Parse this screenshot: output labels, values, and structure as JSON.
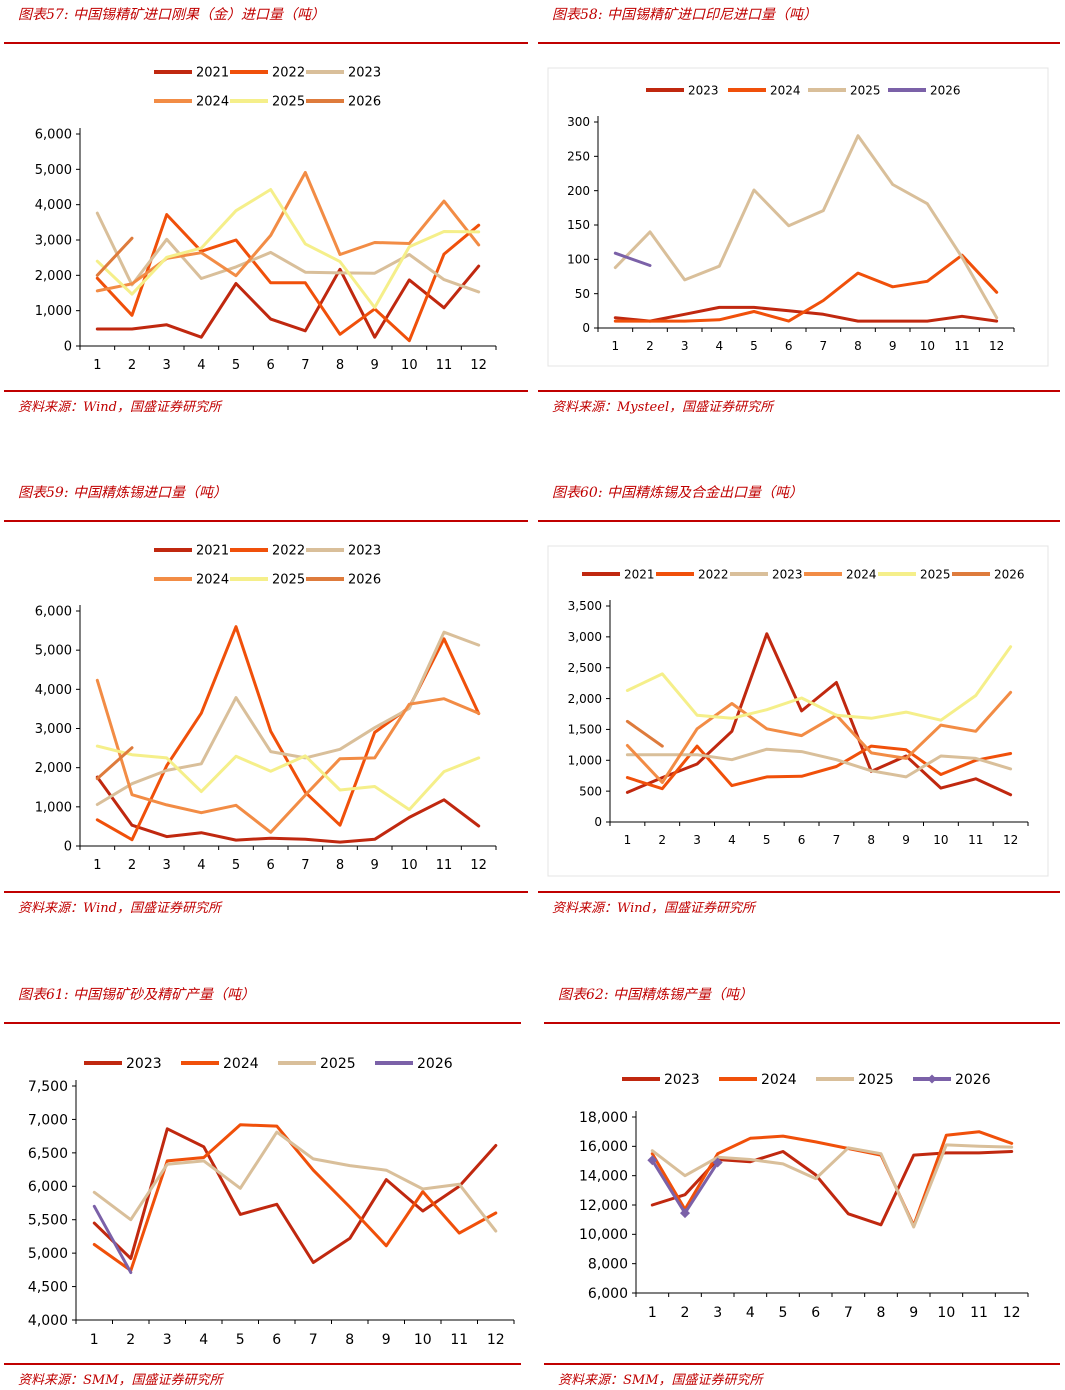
{
  "chart_data": [
    {
      "type": "line",
      "title": "图表57:  中国锡精矿进口刚果（金）进口量（吨）",
      "source": "资料来源：Wind，国盛证券研究所",
      "categories": [
        "1",
        "2",
        "3",
        "4",
        "5",
        "6",
        "7",
        "8",
        "9",
        "10",
        "11",
        "12"
      ],
      "ylim": [
        0,
        6000
      ],
      "yticks": [
        "0",
        "1,000",
        "2,000",
        "3,000",
        "4,000",
        "5,000",
        "6,000"
      ],
      "ytick_values": [
        0,
        1000,
        2000,
        3000,
        4000,
        5000,
        6000
      ],
      "legend_rows": [
        [
          "2021",
          "2022",
          "2023"
        ],
        [
          "2024",
          "2025",
          "2026"
        ]
      ],
      "series": [
        {
          "name": "2021",
          "color": "#c0280f",
          "values": [
            480,
            480,
            600,
            250,
            1770,
            760,
            430,
            2170,
            250,
            1870,
            1080,
            2260
          ]
        },
        {
          "name": "2022",
          "color": "#f0500a",
          "values": [
            1920,
            870,
            3720,
            2680,
            3000,
            1790,
            1790,
            330,
            1050,
            150,
            2600,
            3420
          ]
        },
        {
          "name": "2023",
          "color": "#d9bf9a",
          "values": [
            3760,
            1730,
            3020,
            1910,
            2240,
            2650,
            2090,
            2070,
            2060,
            2590,
            1880,
            1530
          ]
        },
        {
          "name": "2024",
          "color": "#f28c45",
          "values": [
            1560,
            1760,
            2480,
            2640,
            1990,
            3130,
            4910,
            2590,
            2930,
            2900,
            4100,
            2860
          ]
        },
        {
          "name": "2025",
          "color": "#f5ef8a",
          "values": [
            2400,
            1470,
            2510,
            2770,
            3830,
            4430,
            2890,
            2390,
            1090,
            2810,
            3240,
            3230
          ]
        },
        {
          "name": "2026",
          "color": "#de7b3c",
          "values": [
            2000,
            3050,
            null,
            null,
            null,
            null,
            null,
            null,
            null,
            null,
            null,
            null
          ]
        }
      ]
    },
    {
      "type": "line",
      "title": "图表58:  中国锡精矿进口印尼进口量（吨）",
      "source": "资料来源：Mysteel，国盛证券研究所",
      "categories": [
        "1",
        "2",
        "3",
        "4",
        "5",
        "6",
        "7",
        "8",
        "9",
        "10",
        "11",
        "12"
      ],
      "ylim": [
        0,
        300
      ],
      "yticks": [
        "0",
        "50",
        "100",
        "150",
        "200",
        "250",
        "300"
      ],
      "ytick_values": [
        0,
        50,
        100,
        150,
        200,
        250,
        300
      ],
      "legend_rows": [
        [
          "2023",
          "2024",
          "2025",
          "2026"
        ]
      ],
      "series": [
        {
          "name": "2023",
          "color": "#c0280f",
          "values": [
            15,
            10,
            20,
            30,
            30,
            25,
            20,
            10,
            10,
            10,
            17,
            10
          ]
        },
        {
          "name": "2024",
          "color": "#f0500a",
          "values": [
            10,
            10,
            10,
            12,
            24,
            10,
            40,
            80,
            60,
            68,
            106,
            52
          ]
        },
        {
          "name": "2025",
          "color": "#d9bf9a",
          "values": [
            88,
            140,
            70,
            90,
            201,
            149,
            171,
            280,
            209,
            181,
            103,
            15
          ]
        },
        {
          "name": "2026",
          "color": "#7b61a8",
          "values": [
            109,
            91,
            null,
            null,
            null,
            null,
            null,
            null,
            null,
            null,
            null,
            null
          ]
        }
      ]
    },
    {
      "type": "line",
      "title": "图表59:  中国精炼锡进口量（吨）",
      "source": "资料来源：Wind，国盛证券研究所",
      "categories": [
        "1",
        "2",
        "3",
        "4",
        "5",
        "6",
        "7",
        "8",
        "9",
        "10",
        "11",
        "12"
      ],
      "ylim": [
        0,
        6000
      ],
      "yticks": [
        "0",
        "1,000",
        "2,000",
        "3,000",
        "4,000",
        "5,000",
        "6,000"
      ],
      "ytick_values": [
        0,
        1000,
        2000,
        3000,
        4000,
        5000,
        6000
      ],
      "legend_rows": [
        [
          "2021",
          "2022",
          "2023"
        ],
        [
          "2024",
          "2025",
          "2026"
        ]
      ],
      "series": [
        {
          "name": "2021",
          "color": "#c0280f",
          "values": [
            1760,
            530,
            240,
            340,
            150,
            200,
            170,
            100,
            170,
            730,
            1180,
            510
          ]
        },
        {
          "name": "2022",
          "color": "#f0500a",
          "values": [
            670,
            160,
            2050,
            3390,
            5600,
            2930,
            1370,
            530,
            2900,
            3540,
            5290,
            3380
          ]
        },
        {
          "name": "2023",
          "color": "#d9bf9a",
          "values": [
            1060,
            1590,
            1930,
            2100,
            3790,
            2410,
            2250,
            2470,
            3020,
            3510,
            5460,
            5130
          ]
        },
        {
          "name": "2024",
          "color": "#f28c45",
          "values": [
            4230,
            1310,
            1050,
            850,
            1040,
            350,
            1300,
            2230,
            2250,
            3620,
            3760,
            3390
          ]
        },
        {
          "name": "2025",
          "color": "#f5ef8a",
          "values": [
            2550,
            2330,
            2250,
            1390,
            2290,
            1910,
            2300,
            1430,
            1520,
            930,
            1900,
            2250
          ]
        },
        {
          "name": "2026",
          "color": "#de7b3c",
          "values": [
            1720,
            2510,
            null,
            null,
            null,
            null,
            null,
            null,
            null,
            null,
            null,
            null
          ]
        }
      ]
    },
    {
      "type": "line",
      "title": "图表60:  中国精炼锡及合金出口量（吨）",
      "source": "资料来源：Wind，国盛证券研究所",
      "categories": [
        "1",
        "2",
        "3",
        "4",
        "5",
        "6",
        "7",
        "8",
        "9",
        "10",
        "11",
        "12"
      ],
      "ylim": [
        0,
        3500
      ],
      "yticks": [
        "0",
        "500",
        "1,000",
        "1,500",
        "2,000",
        "2,500",
        "3,000",
        "3,500"
      ],
      "ytick_values": [
        0,
        500,
        1000,
        1500,
        2000,
        2500,
        3000,
        3500
      ],
      "legend_rows": [
        [
          "2021",
          "2022",
          "2023",
          "2024",
          "2025",
          "2026"
        ]
      ],
      "series": [
        {
          "name": "2021",
          "color": "#c0280f",
          "values": [
            480,
            720,
            940,
            1470,
            3050,
            1800,
            2260,
            820,
            1070,
            550,
            700,
            440
          ]
        },
        {
          "name": "2022",
          "color": "#f0500a",
          "values": [
            720,
            540,
            1230,
            590,
            730,
            740,
            900,
            1230,
            1170,
            770,
            1000,
            1110
          ]
        },
        {
          "name": "2023",
          "color": "#d9bf9a",
          "values": [
            1090,
            1090,
            1090,
            1010,
            1180,
            1140,
            1010,
            830,
            730,
            1070,
            1030,
            860
          ]
        },
        {
          "name": "2024",
          "color": "#f28c45",
          "values": [
            1240,
            640,
            1510,
            1920,
            1510,
            1400,
            1730,
            1120,
            1030,
            1570,
            1470,
            2100
          ]
        },
        {
          "name": "2025",
          "color": "#f5ef8a",
          "values": [
            2130,
            2400,
            1730,
            1680,
            1820,
            2010,
            1730,
            1680,
            1780,
            1650,
            2050,
            2840
          ]
        },
        {
          "name": "2026",
          "color": "#de7b3c",
          "values": [
            1630,
            1230,
            null,
            null,
            null,
            null,
            null,
            null,
            null,
            null,
            null,
            null
          ]
        }
      ]
    },
    {
      "type": "line",
      "title": "图表61:  中国锡矿砂及精矿产量（吨）",
      "source": "资料来源：SMM，国盛证券研究所",
      "categories": [
        "1",
        "2",
        "3",
        "4",
        "5",
        "6",
        "7",
        "8",
        "9",
        "10",
        "11",
        "12"
      ],
      "ylim": [
        4000,
        7500
      ],
      "yticks": [
        "4,000",
        "4,500",
        "5,000",
        "5,500",
        "6,000",
        "6,500",
        "7,000",
        "7,500"
      ],
      "ytick_values": [
        4000,
        4500,
        5000,
        5500,
        6000,
        6500,
        7000,
        7500
      ],
      "legend_rows": [
        [
          "2023",
          "2024",
          "2025",
          "2026"
        ]
      ],
      "series": [
        {
          "name": "2023",
          "color": "#c0280f",
          "values": [
            5450,
            4920,
            6860,
            6590,
            5580,
            5730,
            4860,
            5220,
            6100,
            5630,
            6000,
            6610
          ]
        },
        {
          "name": "2024",
          "color": "#f0500a",
          "values": [
            5130,
            4740,
            6380,
            6430,
            6920,
            6900,
            6240,
            5690,
            5110,
            5920,
            5300,
            5600
          ]
        },
        {
          "name": "2025",
          "color": "#d9bf9a",
          "values": [
            5910,
            5500,
            6330,
            6380,
            5970,
            6810,
            6410,
            6310,
            6240,
            5960,
            6030,
            5330
          ]
        },
        {
          "name": "2026",
          "color": "#7b61a8",
          "values": [
            5700,
            4710,
            null,
            null,
            null,
            null,
            null,
            null,
            null,
            null,
            null,
            null
          ]
        }
      ]
    },
    {
      "type": "line",
      "title": "图表62:  中国精炼锡产量（吨）",
      "source": "资料来源：SMM，国盛证券研究所",
      "categories": [
        "1",
        "2",
        "3",
        "4",
        "5",
        "6",
        "7",
        "8",
        "9",
        "10",
        "11",
        "12"
      ],
      "ylim": [
        6000,
        18000
      ],
      "yticks": [
        "6,000",
        "8,000",
        "10,000",
        "12,000",
        "14,000",
        "16,000",
        "18,000"
      ],
      "ytick_values": [
        6000,
        8000,
        10000,
        12000,
        14000,
        16000,
        18000
      ],
      "legend_rows": [
        [
          "2023",
          "2024",
          "2025",
          "2026"
        ]
      ],
      "series": [
        {
          "name": "2023",
          "color": "#c0280f",
          "values": [
            12000,
            12700,
            15100,
            14950,
            15650,
            14050,
            11400,
            10650,
            15400,
            15550,
            15550,
            15650
          ]
        },
        {
          "name": "2024",
          "color": "#f0500a",
          "values": [
            15500,
            11700,
            15500,
            16550,
            16700,
            16300,
            15850,
            15400,
            10600,
            16750,
            17000,
            16200
          ]
        },
        {
          "name": "2025",
          "color": "#d9bf9a",
          "values": [
            15700,
            14000,
            15250,
            15100,
            14800,
            13800,
            15900,
            15500,
            10500,
            16100,
            16000,
            15950
          ]
        },
        {
          "name": "2026",
          "color": "#7b61a8",
          "markers": true,
          "values": [
            15050,
            11450,
            14900,
            null,
            null,
            null,
            null,
            null,
            null,
            null,
            null,
            null
          ]
        }
      ]
    }
  ]
}
